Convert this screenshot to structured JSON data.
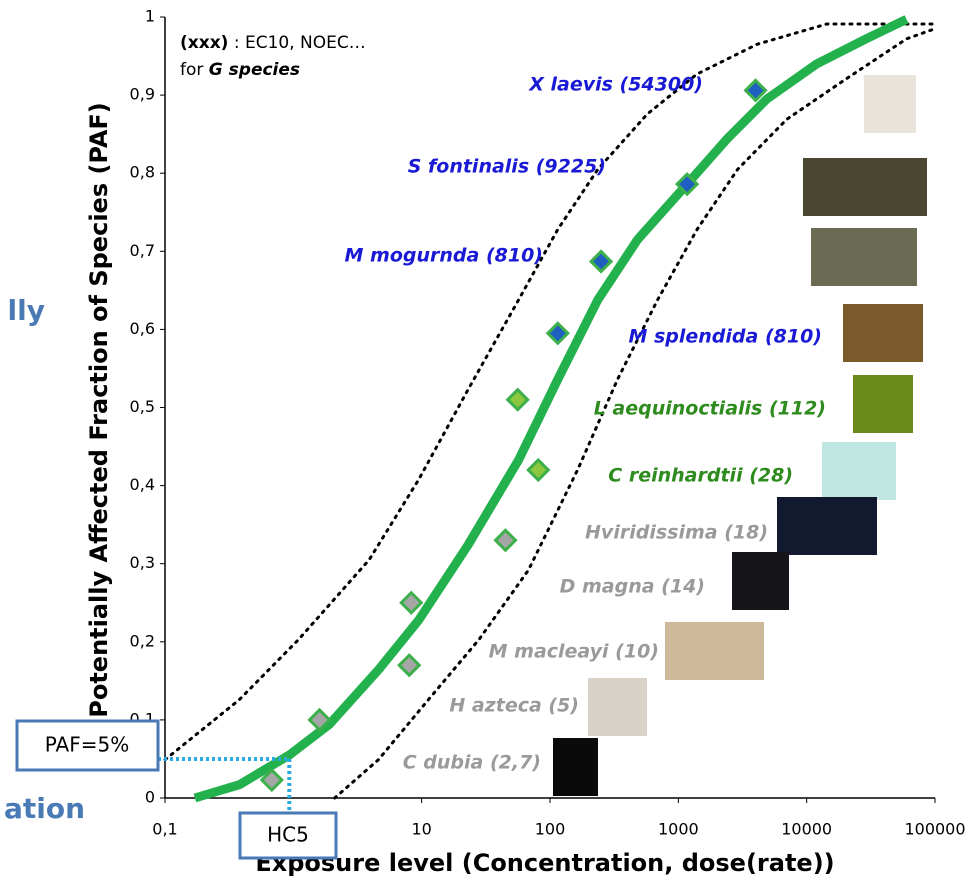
{
  "chart_data": {
    "type": "line",
    "x_scale": "log",
    "xlim": [
      0.1,
      100000
    ],
    "ylim": [
      0,
      1
    ],
    "xticks": [
      {
        "value": 0.1,
        "label": "0,1"
      },
      10,
      100,
      1000,
      10000,
      100000
    ],
    "yticks": [
      0,
      {
        "value": 0.1,
        "label": "0,1"
      },
      {
        "value": 0.2,
        "label": "0,2"
      },
      {
        "value": 0.3,
        "label": "0,3"
      },
      {
        "value": 0.4,
        "label": "0,4"
      },
      {
        "value": 0.5,
        "label": "0,5"
      },
      {
        "value": 0.6,
        "label": "0,6"
      },
      {
        "value": 0.7,
        "label": "0,7"
      },
      {
        "value": 0.8,
        "label": "0,8"
      },
      {
        "value": 0.9,
        "label": "0,9"
      },
      1
    ],
    "xlabel": "Exposure level (Concentration, dose(rate))",
    "ylabel": "Potentially Affected Fraction of Species (PAF)",
    "side_texts": [
      "lly",
      "ation"
    ],
    "note": {
      "line1": [
        "(xxx)",
        " : EC10, NOEC…"
      ],
      "line2": [
        "for ",
        "G species"
      ]
    },
    "marker_edge": "#3cb04a",
    "series": [
      {
        "color": "#22b14c",
        "style": "solid",
        "x": [
          0.171,
          0.38,
          0.93,
          1.9,
          4.6,
          9.5,
          23,
          57,
          115,
          236,
          481,
          1170,
          2400,
          4900,
          12000,
          29000,
          60000
        ],
        "values": [
          0,
          0.017,
          0.055,
          0.094,
          0.164,
          0.228,
          0.324,
          0.433,
          0.536,
          0.638,
          0.715,
          0.786,
          0.844,
          0.895,
          0.94,
          0.972,
          0.997
        ]
      },
      {
        "color": "#000000",
        "style": "dotted",
        "x": [
          0.1,
          0.38,
          1.1,
          3.9,
          9.5,
          23,
          57,
          115,
          236,
          575,
          1400,
          4100,
          14300,
          100000
        ],
        "values": [
          0.049,
          0.126,
          0.203,
          0.305,
          0.408,
          0.523,
          0.638,
          0.728,
          0.805,
          0.876,
          0.927,
          0.965,
          0.991,
          0.991
        ]
      },
      {
        "color": "#000000",
        "style": "dotted",
        "x": [
          2.1,
          4.6,
          11.3,
          28,
          68,
          165,
          336,
          690,
          1400,
          2900,
          7000,
          20400,
          60000,
          100000
        ],
        "values": [
          0,
          0.049,
          0.126,
          0.203,
          0.292,
          0.421,
          0.536,
          0.638,
          0.728,
          0.805,
          0.869,
          0.921,
          0.972,
          0.985
        ]
      },
      {
        "color": "#a6a6a6",
        "style": "marker",
        "x": [
          0.68,
          1.6,
          8.3,
          8,
          45
        ],
        "values": [
          0.023,
          0.1,
          0.25,
          0.17,
          0.33
        ]
      },
      {
        "color": "#8dc63f",
        "style": "marker",
        "x": [
          56,
          81
        ],
        "values": [
          0.51,
          0.42
        ]
      },
      {
        "color": "#1f5fbf",
        "style": "marker",
        "x": [
          115,
          250,
          1170,
          4000
        ],
        "values": [
          0.595,
          0.687,
          0.786,
          0.906
        ]
      }
    ],
    "annotations": [
      {
        "text": "X laevis (54300)",
        "color": "#1a1ad6"
      },
      {
        "text": "S fontinalis (9225)",
        "color": "#1a1ad6"
      },
      {
        "text": "M mogurnda (810)",
        "color": "#1a1ad6"
      },
      {
        "text": "M splendida (810)",
        "color": "#1a1ad6"
      },
      {
        "text": "L aequinoctialis (112)",
        "color": "#2e8b1e"
      },
      {
        "text": "C reinhardtii (28)",
        "color": "#2e8b1e"
      },
      {
        "text": "Hviridissima (18)",
        "color": "#9a9a9a"
      },
      {
        "text": "D magna (14)",
        "color": "#9a9a9a"
      },
      {
        "text": "M macleayi (10)",
        "color": "#9a9a9a"
      },
      {
        "text": "H azteca (5)",
        "color": "#9a9a9a"
      },
      {
        "text": "C dubia (2,7)",
        "color": "#9a9a9a"
      }
    ],
    "paf_box": {
      "label": "PAF=5%",
      "value": 0.05
    },
    "hc5": {
      "label": "HC5",
      "x": 0.93
    }
  }
}
